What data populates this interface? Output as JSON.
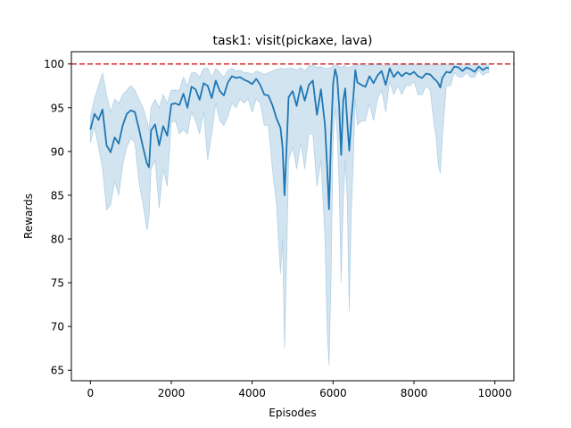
{
  "chart_data": {
    "type": "line",
    "title": "task1: visit(pickaxe, lava)",
    "xlabel": "Episodes",
    "ylabel": "Rewards",
    "xlim": [
      -470,
      10470
    ],
    "ylim": [
      63.8,
      101.4
    ],
    "xticks": [
      0,
      2000,
      4000,
      6000,
      8000,
      10000
    ],
    "yticks": [
      65,
      70,
      75,
      80,
      85,
      90,
      95,
      100
    ],
    "grid": false,
    "reference_line": {
      "y": 100,
      "style": "dashed",
      "color": "#d62728"
    },
    "series": [
      {
        "color": "#1f77b4",
        "band_color": "#1f77b4",
        "band_opacity": 0.2,
        "x": [
          0,
          100,
          200,
          300,
          400,
          500,
          600,
          700,
          800,
          900,
          1000,
          1100,
          1200,
          1300,
          1400,
          1450,
          1500,
          1600,
          1700,
          1800,
          1900,
          2000,
          2100,
          2200,
          2300,
          2400,
          2500,
          2600,
          2700,
          2800,
          2900,
          3000,
          3100,
          3200,
          3300,
          3400,
          3500,
          3600,
          3700,
          3800,
          3900,
          4000,
          4100,
          4200,
          4300,
          4400,
          4500,
          4600,
          4700,
          4750,
          4800,
          4850,
          4900,
          5000,
          5100,
          5200,
          5300,
          5400,
          5500,
          5600,
          5700,
          5800,
          5850,
          5900,
          5950,
          6000,
          6050,
          6100,
          6150,
          6200,
          6250,
          6300,
          6350,
          6400,
          6450,
          6500,
          6550,
          6600,
          6700,
          6800,
          6900,
          7000,
          7100,
          7200,
          7300,
          7400,
          7500,
          7600,
          7700,
          7800,
          7900,
          8000,
          8100,
          8200,
          8300,
          8400,
          8500,
          8550,
          8600,
          8650,
          8700,
          8800,
          8900,
          9000,
          9100,
          9200,
          9300,
          9400,
          9500,
          9600,
          9700,
          9800,
          9850
        ],
        "mean": [
          92.5,
          94.3,
          93.6,
          94.8,
          90.7,
          89.9,
          91.6,
          90.9,
          93.0,
          94.3,
          94.7,
          94.5,
          92.6,
          90.5,
          88.6,
          88.2,
          92.4,
          93.1,
          90.7,
          92.9,
          91.8,
          95.4,
          95.5,
          95.3,
          96.6,
          95.0,
          97.4,
          97.1,
          95.9,
          97.8,
          97.5,
          96.1,
          98.1,
          96.9,
          96.4,
          97.9,
          98.6,
          98.4,
          98.5,
          98.2,
          98.0,
          97.7,
          98.3,
          97.6,
          96.5,
          96.4,
          95.3,
          93.8,
          92.7,
          90.5,
          85.0,
          90.4,
          96.2,
          96.9,
          95.2,
          97.5,
          95.8,
          97.6,
          98.1,
          94.2,
          97.1,
          93.0,
          88.5,
          83.4,
          91.7,
          97.7,
          99.4,
          98.5,
          95.2,
          89.6,
          95.8,
          97.2,
          93.4,
          90.1,
          93.6,
          96.2,
          99.3,
          97.9,
          97.6,
          97.4,
          98.6,
          97.8,
          98.7,
          99.2,
          97.6,
          99.5,
          98.5,
          99.1,
          98.6,
          99.0,
          98.8,
          99.1,
          98.6,
          98.4,
          98.9,
          98.8,
          98.3,
          98.1,
          97.8,
          97.3,
          98.4,
          99.1,
          99.0,
          99.7,
          99.6,
          99.2,
          99.6,
          99.4,
          99.1,
          99.7,
          99.3,
          99.6,
          99.5
        ],
        "lower": [
          91.0,
          92.8,
          90.5,
          88.0,
          83.3,
          83.9,
          86.6,
          85.0,
          88.5,
          90.5,
          91.5,
          91.0,
          86.5,
          84.0,
          81.0,
          82.5,
          88.0,
          89.0,
          83.5,
          88.0,
          86.0,
          93.3,
          93.5,
          92.0,
          92.5,
          92.0,
          94.5,
          93.5,
          92.0,
          94.5,
          89.0,
          92.0,
          95.5,
          93.5,
          93.0,
          94.0,
          95.5,
          95.0,
          96.0,
          95.5,
          96.0,
          94.5,
          96.0,
          95.5,
          93.0,
          93.0,
          88.0,
          84.0,
          76.0,
          80.0,
          67.5,
          77.0,
          89.0,
          90.5,
          88.0,
          91.0,
          88.0,
          92.0,
          92.0,
          86.0,
          89.0,
          80.0,
          70.0,
          65.5,
          75.5,
          91.0,
          95.0,
          92.0,
          86.0,
          75.0,
          84.0,
          89.0,
          84.5,
          71.7,
          83.0,
          89.0,
          96.0,
          93.0,
          93.5,
          93.5,
          95.5,
          93.5,
          96.0,
          97.0,
          94.5,
          98.0,
          96.5,
          97.5,
          96.5,
          97.5,
          97.5,
          98.0,
          96.5,
          96.5,
          97.5,
          97.0,
          93.0,
          91.5,
          88.5,
          87.5,
          91.5,
          97.5,
          97.5,
          99.0,
          98.5,
          98.5,
          99.0,
          98.5,
          98.5,
          99.3,
          98.7,
          99.0,
          99.0
        ],
        "upper": [
          94.0,
          96.0,
          97.5,
          99.0,
          96.5,
          94.5,
          96.0,
          95.5,
          96.5,
          97.0,
          97.5,
          97.0,
          96.0,
          95.0,
          93.5,
          92.5,
          95.0,
          96.0,
          95.0,
          96.5,
          95.5,
          97.0,
          97.0,
          97.0,
          98.5,
          97.5,
          99.0,
          99.0,
          98.5,
          99.5,
          99.5,
          98.5,
          99.5,
          99.0,
          98.5,
          99.3,
          99.5,
          99.2,
          99.3,
          99.0,
          99.0,
          98.8,
          99.2,
          99.0,
          98.8,
          99.0,
          99.2,
          99.4,
          99.5,
          99.5,
          99.4,
          99.5,
          99.5,
          99.5,
          99.3,
          99.6,
          99.2,
          99.8,
          99.9,
          99.6,
          99.7,
          99.5,
          99.5,
          99.5,
          99.6,
          99.8,
          99.9,
          99.9,
          99.7,
          99.6,
          99.8,
          99.8,
          99.6,
          99.6,
          99.7,
          99.8,
          99.9,
          99.9,
          99.9,
          99.8,
          99.9,
          99.9,
          99.9,
          99.9,
          99.8,
          99.9,
          99.9,
          99.9,
          99.9,
          99.9,
          99.9,
          99.9,
          99.9,
          99.9,
          99.9,
          99.9,
          99.9,
          99.9,
          99.9,
          99.9,
          99.9,
          99.9,
          99.9,
          99.9,
          99.9,
          99.9,
          99.9,
          99.9,
          99.9,
          99.9,
          99.9,
          99.9,
          99.9
        ]
      }
    ]
  }
}
